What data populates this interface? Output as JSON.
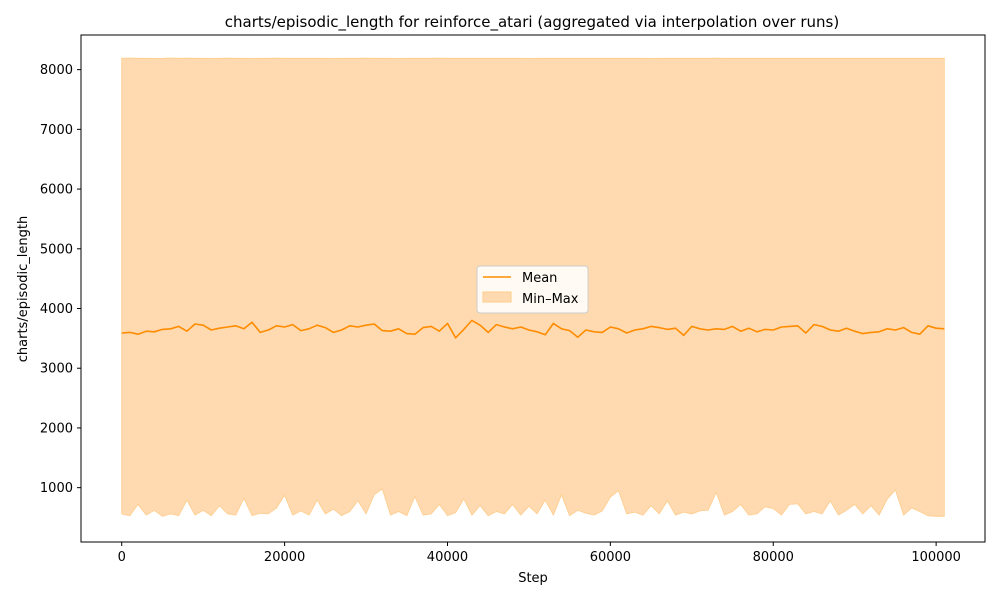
{
  "chart_data": {
    "type": "line",
    "title": "charts/episodic_length for reinforce_atari (aggregated via interpolation over runs)",
    "xlabel": "Step",
    "ylabel": "charts/episodic_length",
    "xlim": [
      -5000,
      106000
    ],
    "ylim": [
      90,
      8580
    ],
    "x_ticks": [
      0,
      20000,
      40000,
      60000,
      80000,
      100000
    ],
    "y_ticks": [
      1000,
      2000,
      3000,
      4000,
      5000,
      6000,
      7000,
      8000
    ],
    "grid": false,
    "legend_position": "center",
    "colors": {
      "mean": "#ff8c00",
      "band_fill": "#ffdab0",
      "band_edge": "#ffcc8a"
    },
    "series": [
      {
        "name": "Mean",
        "kind": "line",
        "x": [
          0,
          1000,
          2000,
          3000,
          4000,
          5000,
          6000,
          7000,
          8000,
          9000,
          10000,
          11000,
          12000,
          13000,
          14000,
          15000,
          16000,
          17000,
          18000,
          19000,
          20000,
          21000,
          22000,
          23000,
          24000,
          25000,
          26000,
          27000,
          28000,
          29000,
          30000,
          31000,
          32000,
          33000,
          34000,
          35000,
          36000,
          37000,
          38000,
          39000,
          40000,
          41000,
          42000,
          43000,
          44000,
          45000,
          46000,
          47000,
          48000,
          49000,
          50000,
          51000,
          52000,
          53000,
          54000,
          55000,
          56000,
          57000,
          58000,
          59000,
          60000,
          61000,
          62000,
          63000,
          64000,
          65000,
          66000,
          67000,
          68000,
          69000,
          70000,
          71000,
          72000,
          73000,
          74000,
          75000,
          76000,
          77000,
          78000,
          79000,
          80000,
          81000,
          82000,
          83000,
          84000,
          85000,
          86000,
          87000,
          88000,
          89000,
          90000,
          91000,
          92000,
          93000,
          94000,
          95000,
          96000,
          97000,
          98000,
          99000,
          100000,
          101000
        ],
        "y": [
          3590,
          3600,
          3570,
          3620,
          3610,
          3650,
          3660,
          3700,
          3620,
          3740,
          3720,
          3640,
          3670,
          3690,
          3710,
          3660,
          3770,
          3600,
          3640,
          3710,
          3690,
          3730,
          3630,
          3660,
          3720,
          3680,
          3600,
          3640,
          3710,
          3690,
          3720,
          3740,
          3630,
          3620,
          3660,
          3580,
          3570,
          3680,
          3700,
          3620,
          3750,
          3510,
          3650,
          3800,
          3720,
          3600,
          3730,
          3690,
          3660,
          3690,
          3640,
          3610,
          3560,
          3750,
          3660,
          3630,
          3520,
          3640,
          3610,
          3600,
          3690,
          3660,
          3590,
          3640,
          3660,
          3700,
          3680,
          3650,
          3670,
          3550,
          3700,
          3660,
          3640,
          3660,
          3650,
          3700,
          3620,
          3670,
          3610,
          3650,
          3640,
          3690,
          3700,
          3710,
          3590,
          3730,
          3700,
          3640,
          3620,
          3670,
          3620,
          3580,
          3600,
          3610,
          3660,
          3640,
          3680,
          3600,
          3570,
          3710,
          3670,
          3660
        ]
      },
      {
        "name": "Min–Max",
        "kind": "band",
        "x": [
          0,
          1000,
          2000,
          3000,
          4000,
          5000,
          6000,
          7000,
          8000,
          9000,
          10000,
          11000,
          12000,
          13000,
          14000,
          15000,
          16000,
          17000,
          18000,
          19000,
          20000,
          21000,
          22000,
          23000,
          24000,
          25000,
          26000,
          27000,
          28000,
          29000,
          30000,
          31000,
          32000,
          33000,
          34000,
          35000,
          36000,
          37000,
          38000,
          39000,
          40000,
          41000,
          42000,
          43000,
          44000,
          45000,
          46000,
          47000,
          48000,
          49000,
          50000,
          51000,
          52000,
          53000,
          54000,
          55000,
          56000,
          57000,
          58000,
          59000,
          60000,
          61000,
          62000,
          63000,
          64000,
          65000,
          66000,
          67000,
          68000,
          69000,
          70000,
          71000,
          72000,
          73000,
          74000,
          75000,
          76000,
          77000,
          78000,
          79000,
          80000,
          81000,
          82000,
          83000,
          84000,
          85000,
          86000,
          87000,
          88000,
          89000,
          90000,
          91000,
          92000,
          93000,
          94000,
          95000,
          96000,
          97000,
          98000,
          99000,
          100000,
          101000
        ],
        "upper": [
          8190,
          8195,
          8190,
          8190,
          8188,
          8190,
          8195,
          8190,
          8192,
          8190,
          8190,
          8188,
          8190,
          8192,
          8190,
          8190,
          8188,
          8190,
          8190,
          8191,
          8190,
          8190,
          8189,
          8190,
          8190,
          8190,
          8188,
          8190,
          8190,
          8190,
          8192,
          8190,
          8190,
          8190,
          8188,
          8190,
          8190,
          8190,
          8190,
          8191,
          8190,
          8190,
          8190,
          8190,
          8189,
          8190,
          8190,
          8190,
          8190,
          8190,
          8188,
          8190,
          8190,
          8190,
          8190,
          8190,
          8190,
          8189,
          8190,
          8190,
          8190,
          8190,
          8190,
          8190,
          8190,
          8188,
          8190,
          8190,
          8190,
          8190,
          8190,
          8190,
          8190,
          8191,
          8190,
          8190,
          8190,
          8190,
          8190,
          8190,
          8190,
          8190,
          8189,
          8190,
          8190,
          8190,
          8190,
          8190,
          8190,
          8190,
          8190,
          8190,
          8190,
          8190,
          8190,
          8190,
          8190,
          8190,
          8190,
          8190,
          8190,
          8190
        ],
        "lower": [
          560,
          530,
          720,
          540,
          620,
          520,
          560,
          530,
          790,
          540,
          620,
          530,
          700,
          560,
          540,
          820,
          530,
          570,
          560,
          660,
          870,
          540,
          610,
          540,
          790,
          560,
          640,
          530,
          600,
          780,
          560,
          880,
          980,
          540,
          600,
          530,
          850,
          540,
          560,
          720,
          530,
          580,
          810,
          540,
          700,
          530,
          600,
          560,
          720,
          540,
          690,
          560,
          790,
          540,
          880,
          530,
          620,
          570,
          540,
          610,
          840,
          950,
          560,
          590,
          540,
          700,
          560,
          780,
          540,
          590,
          560,
          610,
          620,
          920,
          540,
          600,
          720,
          540,
          560,
          680,
          650,
          540,
          720,
          730,
          560,
          600,
          560,
          780,
          540,
          620,
          720,
          560,
          700,
          540,
          810,
          960,
          540,
          660,
          600,
          530,
          520,
          520
        ]
      }
    ]
  }
}
